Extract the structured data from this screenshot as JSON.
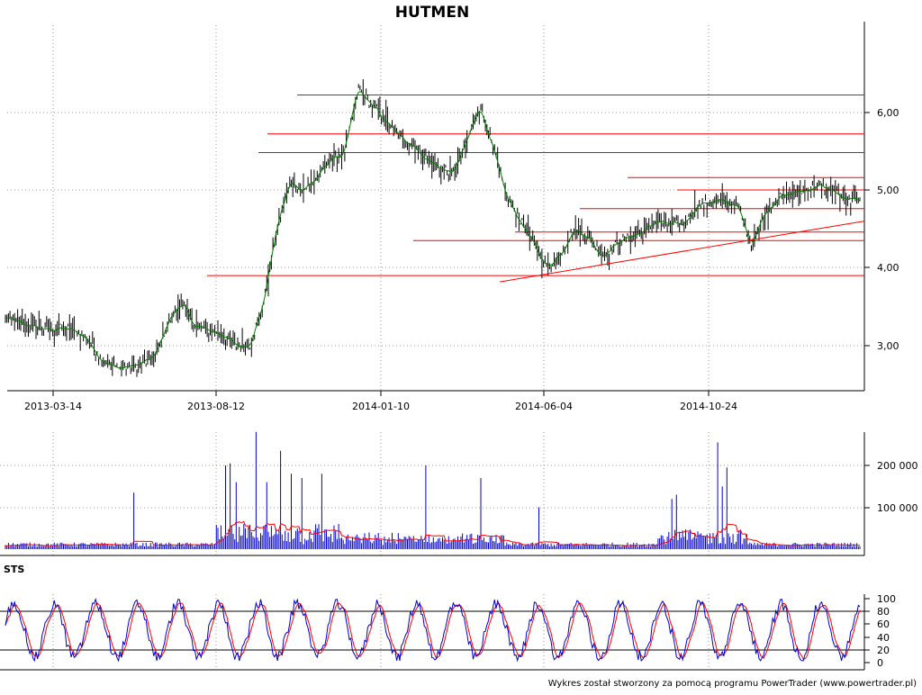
{
  "chart_data": [
    {
      "type": "ohlc",
      "title": "HUTMEN",
      "x_tick_labels": [
        "2013-03-14",
        "2013-08-12",
        "2014-01-10",
        "2014-06-04",
        "2014-10-24"
      ],
      "y_tick_labels": [
        "3,00",
        "4,00",
        "5,00",
        "6,00"
      ],
      "ylim": [
        2.45,
        6.95
      ],
      "grid": true,
      "line_color": "#008000",
      "bar_color": "#000000",
      "closes": [
        3.35,
        3.3,
        3.25,
        3.2,
        3.22,
        3.2,
        3.1,
        2.85,
        2.72,
        2.72,
        2.76,
        2.85,
        3.3,
        3.55,
        3.25,
        3.2,
        3.15,
        3.0,
        3.0,
        3.5,
        4.5,
        5.1,
        5.0,
        5.15,
        5.4,
        5.45,
        6.3,
        6.1,
        5.9,
        5.7,
        5.6,
        5.4,
        5.3,
        5.2,
        5.6,
        6.1,
        5.5,
        4.9,
        4.6,
        4.3,
        4.0,
        4.2,
        4.5,
        4.4,
        4.15,
        4.3,
        4.4,
        4.45,
        4.6,
        4.55,
        4.55,
        4.8,
        4.85,
        4.85,
        4.8,
        4.3,
        4.7,
        4.9,
        4.95,
        5.0,
        5.05,
        5.0,
        4.85,
        4.9
      ],
      "h_lines_color": "#ff0000",
      "h_lines": [
        {
          "y": 6.22,
          "x_start": 330
        },
        {
          "y": 5.72,
          "x_start": 297
        },
        {
          "y": 5.48,
          "x_start": 287
        },
        {
          "y": 5.16,
          "x_start": 697
        },
        {
          "y": 5.0,
          "x_start": 752
        },
        {
          "y": 4.76,
          "x_start": 644
        },
        {
          "y": 4.46,
          "x_start": 572
        },
        {
          "y": 4.35,
          "x_start": 459
        },
        {
          "y": 3.9,
          "x_start": 230
        }
      ],
      "trendline": {
        "start": [
          "2014-04-10",
          3.82
        ],
        "end": [
          "last",
          4.6
        ]
      }
    },
    {
      "type": "bar",
      "name": "volume",
      "y_tick_labels": [
        "100 000",
        "200 000"
      ],
      "ylim": [
        0,
        280000
      ],
      "bar_color": "#0000cc",
      "ma_color": "#ff0000",
      "spikes": [
        {
          "x": 148,
          "value": 135000
        },
        {
          "x": 250,
          "value": 200000
        },
        {
          "x": 256,
          "value": 205000
        },
        {
          "x": 263,
          "value": 160000
        },
        {
          "x": 284,
          "value": 280000
        },
        {
          "x": 296,
          "value": 160000
        },
        {
          "x": 312,
          "value": 235000
        },
        {
          "x": 323,
          "value": 180000
        },
        {
          "x": 335,
          "value": 170000
        },
        {
          "x": 358,
          "value": 180000
        },
        {
          "x": 473,
          "value": 200000
        },
        {
          "x": 534,
          "value": 170000
        },
        {
          "x": 598,
          "value": 100000
        },
        {
          "x": 746,
          "value": 120000
        },
        {
          "x": 752,
          "value": 130000
        },
        {
          "x": 797,
          "value": 255000
        },
        {
          "x": 803,
          "value": 150000
        },
        {
          "x": 808,
          "value": 195000
        }
      ]
    },
    {
      "type": "line",
      "name": "stochastic",
      "panel_label": "STS",
      "y_tick_labels": [
        "0",
        "20",
        "40",
        "60",
        "80",
        "100"
      ],
      "ylim": [
        0,
        100
      ],
      "reference_lines": [
        20,
        80
      ],
      "series_colors": [
        "#0000cc",
        "#ff0000"
      ]
    }
  ],
  "footer": "Wykres został stworzony za pomocą programu PowerTrader (www.powertrader.pl)"
}
